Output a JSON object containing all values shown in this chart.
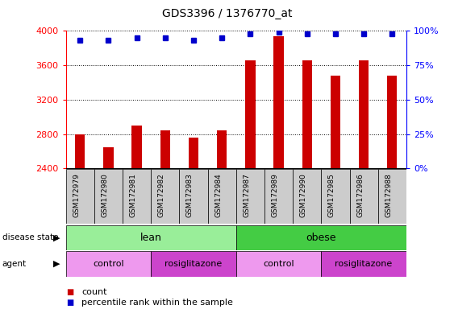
{
  "title": "GDS3396 / 1376770_at",
  "samples": [
    "GSM172979",
    "GSM172980",
    "GSM172981",
    "GSM172982",
    "GSM172983",
    "GSM172984",
    "GSM172987",
    "GSM172989",
    "GSM172990",
    "GSM172985",
    "GSM172986",
    "GSM172988"
  ],
  "counts": [
    2800,
    2645,
    2900,
    2840,
    2760,
    2840,
    3660,
    3940,
    3660,
    3480,
    3660,
    3480
  ],
  "percentile_ranks": [
    93,
    93,
    95,
    95,
    93,
    95,
    98,
    99,
    98,
    98,
    98,
    98
  ],
  "ymin": 2400,
  "ymax": 4000,
  "yticks": [
    2400,
    2800,
    3200,
    3600,
    4000
  ],
  "right_yticks": [
    0,
    25,
    50,
    75,
    100
  ],
  "bar_color": "#cc0000",
  "dot_color": "#0000cc",
  "background_color": "#ffffff",
  "disease_state_lean_color": "#99ee99",
  "disease_state_obese_color": "#44cc44",
  "agent_control_color": "#ee99ee",
  "agent_rosig_color": "#cc44cc",
  "sample_bg_color": "#cccccc",
  "lean_samples": 6,
  "obese_samples": 6,
  "lean_control_count": 3,
  "lean_rosig_count": 3,
  "obese_control_count": 3,
  "obese_rosig_count": 3
}
